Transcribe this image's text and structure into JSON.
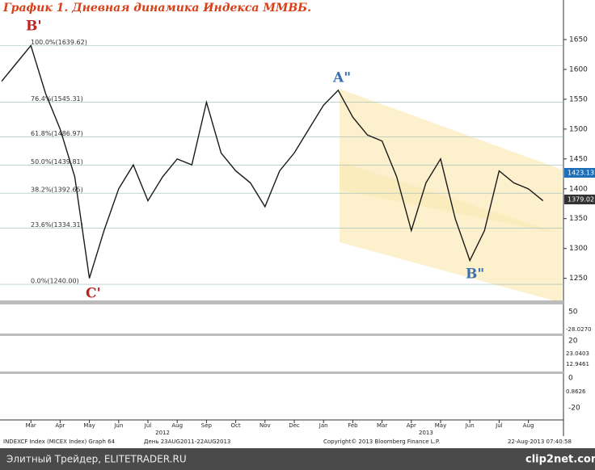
{
  "chart_data": {
    "type": "line",
    "title": "График 1.   Дневная динамика Индекса ММВБ.",
    "categories": [
      null,
      null,
      "Mar",
      null,
      "Apr",
      null,
      "May",
      null,
      "Jun",
      null,
      "Jul",
      null,
      "Aug",
      null,
      "Sep",
      null,
      "Oct",
      null,
      "Nov",
      null,
      "Dec",
      null,
      "Jan",
      null,
      "Feb",
      null,
      "Mar",
      null,
      "Apr",
      null,
      "May",
      null,
      "Jun",
      null,
      "Jul",
      null,
      "Aug",
      null
    ],
    "values": [
      1580,
      1610,
      1640,
      1560,
      1500,
      1420,
      1250,
      1330,
      1400,
      1440,
      1380,
      1420,
      1450,
      1440,
      1545,
      1460,
      1430,
      1410,
      1370,
      1430,
      1460,
      1500,
      1540,
      1565,
      1520,
      1490,
      1480,
      1420,
      1330,
      1410,
      1450,
      1350,
      1280,
      1330,
      1430,
      1410,
      1400,
      1380
    ],
    "color": "#1a1a1a",
    "ylim": [
      1213,
      1700
    ],
    "yticks": [
      1250,
      1300,
      1350,
      1400,
      1450,
      1500,
      1550,
      1600,
      1650
    ],
    "grid": true,
    "fib_levels": [
      {
        "value": 1639.62,
        "label": "100.0%(1639.62)"
      },
      {
        "value": 1545.31,
        "label": "76.4%(1545.31)"
      },
      {
        "value": 1486.97,
        "label": "61.8%(1486.97)"
      },
      {
        "value": 1439.81,
        "label": "50.0%(1439.81)"
      },
      {
        "value": 1392.65,
        "label": "38.2%(1392.65)"
      },
      {
        "value": 1334.31,
        "label": "23.6%(1334.31)"
      },
      {
        "value": 1240.0,
        "label": "0.0%(1240.00)"
      }
    ],
    "years": [
      "2012",
      "2013"
    ],
    "annotations": [
      "B'",
      "C'",
      "A\"",
      "B\""
    ],
    "price_tags": [
      "1423.13",
      "1379.02"
    ],
    "indicator_labels": [
      "50",
      "-28.0270",
      "20",
      "23.0403",
      "12.9461",
      "0",
      "0.8626",
      "-20"
    ],
    "footer": [
      "INDEXCF Index (MICEX Index) Graph 64",
      "День 23AUG2011-22AUG2013",
      "Copyright© 2013 Bloomberg Finance L.P.",
      "22-Aug-2013 07:40:58"
    ],
    "watermark": [
      "Элитный Трейдер, ELITETRADER.RU",
      "clip2net.com"
    ]
  }
}
